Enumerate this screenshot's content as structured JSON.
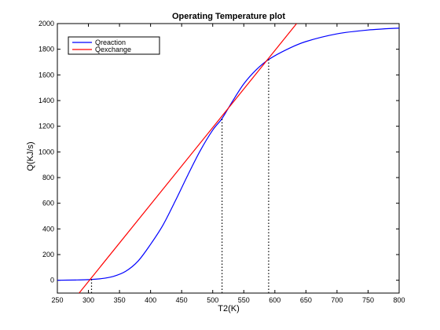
{
  "chart_data": {
    "type": "line",
    "title": "Operating Temperature plot",
    "xlabel": "T2(K)",
    "ylabel": "Q(KJ/s)",
    "xlim": [
      250,
      800
    ],
    "ylim": [
      -100,
      2000
    ],
    "x_ticks": [
      250,
      300,
      350,
      400,
      450,
      500,
      550,
      600,
      650,
      700,
      750,
      800
    ],
    "y_ticks": [
      0,
      200,
      400,
      600,
      800,
      1000,
      1200,
      1400,
      1600,
      1800,
      2000
    ],
    "grid": false,
    "legend": {
      "position": "top-left"
    },
    "series": [
      {
        "name": "Qreaction",
        "color": "#0000ff",
        "x": [
          250,
          280,
          300,
          320,
          340,
          360,
          380,
          400,
          420,
          440,
          460,
          480,
          500,
          515,
          530,
          550,
          570,
          590,
          620,
          650,
          700,
          750,
          800
        ],
        "y": [
          0,
          2,
          5,
          12,
          30,
          70,
          150,
          280,
          430,
          620,
          820,
          1010,
          1170,
          1260,
          1380,
          1530,
          1640,
          1720,
          1800,
          1860,
          1920,
          1950,
          1965
        ]
      },
      {
        "name": "Qexchange",
        "color": "#ff0000",
        "x": [
          285,
          635
        ],
        "y": [
          -100,
          2000
        ]
      }
    ],
    "annotations": [
      {
        "type": "vline",
        "x": 305,
        "y": 10,
        "style": "dotted",
        "color": "#000000"
      },
      {
        "type": "vline",
        "x": 515,
        "y": 1260,
        "style": "dotted",
        "color": "#000000"
      },
      {
        "type": "vline",
        "x": 590,
        "y": 1720,
        "style": "dotted",
        "color": "#000000"
      }
    ]
  }
}
